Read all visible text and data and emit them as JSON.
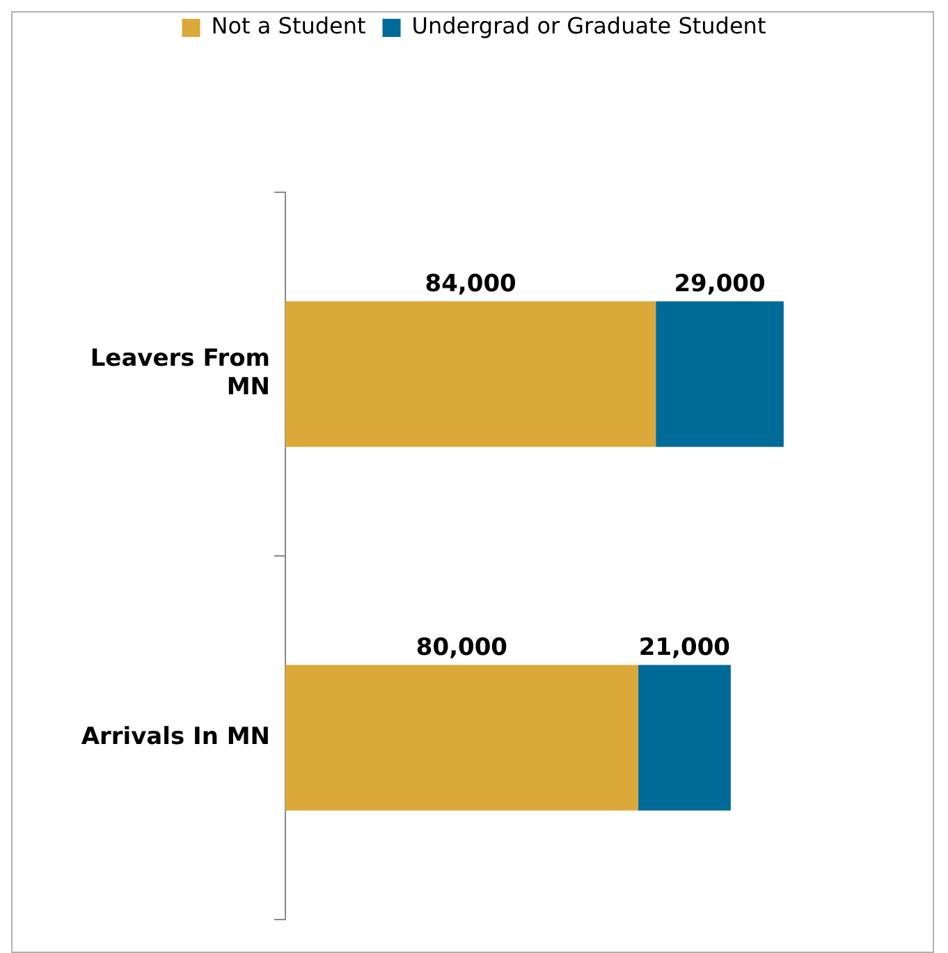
{
  "chart_data": {
    "type": "bar",
    "orientation": "horizontal",
    "stacked": true,
    "categories": [
      "Leavers From MN",
      "Arrivals In MN"
    ],
    "series": [
      {
        "name": "Not a Student",
        "color": "#dba83a",
        "values": [
          84000,
          80000
        ],
        "value_labels": [
          "84,000",
          "80,000"
        ]
      },
      {
        "name": "Undergrad or Graduate Student",
        "color": "#006a98",
        "values": [
          29000,
          21000
        ],
        "value_labels": [
          "29,000",
          "21,000"
        ]
      }
    ],
    "legend": "top",
    "grid": false
  }
}
